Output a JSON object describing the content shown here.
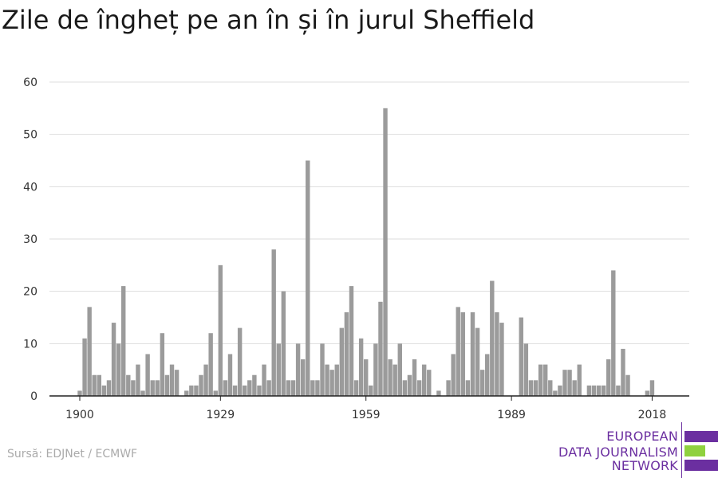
{
  "title": "Zile de îngheț pe an în și în jurul Sheffield",
  "source": "Sursă: EDJNet / ECMWF",
  "logo": {
    "lines": [
      "EUROPEAN",
      "DATA JOURNALISM",
      "NETWORK"
    ],
    "colors": {
      "purple": "#6b2fa0",
      "green": "#8fd13f"
    }
  },
  "colors": {
    "bar": "#9b9b9b",
    "grid": "#dddddd",
    "axis": "#222222"
  },
  "chart_data": {
    "type": "bar",
    "title": "Zile de îngheț pe an în și în jurul Sheffield",
    "xlabel": "",
    "ylabel": "",
    "ylim": [
      0,
      60
    ],
    "yticks": [
      0,
      10,
      20,
      30,
      40,
      50,
      60
    ],
    "xticks": [
      1900,
      1929,
      1959,
      1989,
      2018
    ],
    "grid": true,
    "x": [
      1900,
      1901,
      1902,
      1903,
      1904,
      1905,
      1906,
      1907,
      1908,
      1909,
      1910,
      1911,
      1912,
      1913,
      1914,
      1915,
      1916,
      1917,
      1918,
      1919,
      1920,
      1921,
      1922,
      1923,
      1924,
      1925,
      1926,
      1927,
      1928,
      1929,
      1930,
      1931,
      1932,
      1933,
      1934,
      1935,
      1936,
      1937,
      1938,
      1939,
      1940,
      1941,
      1942,
      1943,
      1944,
      1945,
      1946,
      1947,
      1948,
      1949,
      1950,
      1951,
      1952,
      1953,
      1954,
      1955,
      1956,
      1957,
      1958,
      1959,
      1960,
      1961,
      1962,
      1963,
      1964,
      1965,
      1966,
      1967,
      1968,
      1969,
      1970,
      1971,
      1972,
      1973,
      1974,
      1975,
      1976,
      1977,
      1978,
      1979,
      1980,
      1981,
      1982,
      1983,
      1984,
      1985,
      1986,
      1987,
      1988,
      1989,
      1990,
      1991,
      1992,
      1993,
      1994,
      1995,
      1996,
      1997,
      1998,
      1999,
      2000,
      2001,
      2002,
      2003,
      2004,
      2005,
      2006,
      2007,
      2008,
      2009,
      2010,
      2011,
      2012,
      2013,
      2014,
      2015,
      2016,
      2017,
      2018
    ],
    "values": [
      1,
      11,
      17,
      4,
      4,
      2,
      3,
      14,
      10,
      21,
      4,
      3,
      6,
      1,
      8,
      3,
      3,
      12,
      4,
      6,
      5,
      0,
      1,
      2,
      2,
      4,
      6,
      12,
      1,
      25,
      3,
      8,
      2,
      13,
      2,
      3,
      4,
      2,
      6,
      3,
      28,
      10,
      20,
      3,
      3,
      10,
      7,
      45,
      3,
      3,
      10,
      6,
      5,
      6,
      13,
      16,
      21,
      3,
      11,
      7,
      2,
      10,
      18,
      55,
      7,
      6,
      10,
      3,
      4,
      7,
      3,
      6,
      5,
      0,
      1,
      0,
      3,
      8,
      17,
      16,
      3,
      16,
      13,
      5,
      8,
      22,
      16,
      14,
      0,
      0,
      0,
      15,
      10,
      3,
      3,
      6,
      6,
      3,
      1,
      2,
      5,
      5,
      3,
      6,
      0,
      2,
      2,
      2,
      2,
      7,
      24,
      2,
      9,
      4,
      0,
      0,
      0,
      1,
      3
    ]
  }
}
